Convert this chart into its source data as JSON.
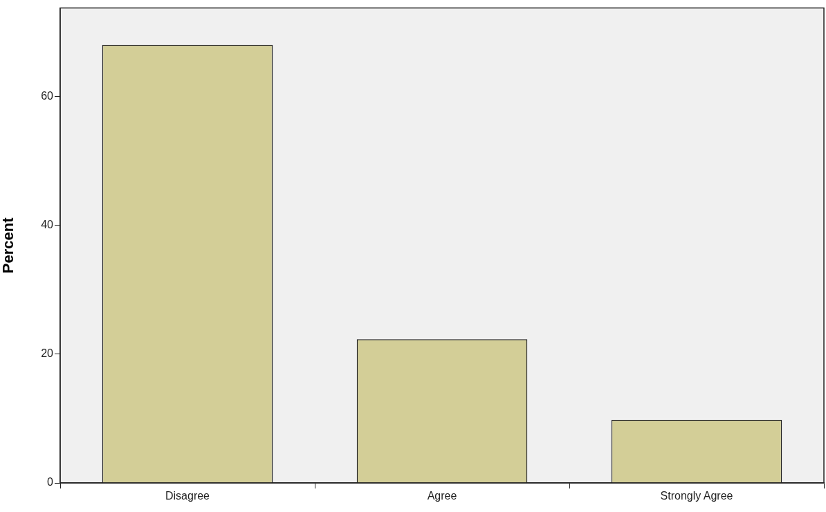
{
  "chart_data": {
    "type": "bar",
    "ylabel": "Percent",
    "categories": [
      "Disagree",
      "Agree",
      "Strongly Agree"
    ],
    "values": [
      68,
      22.3,
      9.8
    ],
    "color": "#d3ce97",
    "ylim": [
      0,
      73.7
    ],
    "yticks": [
      0,
      20,
      40,
      60
    ],
    "grid": false,
    "legend": false
  }
}
